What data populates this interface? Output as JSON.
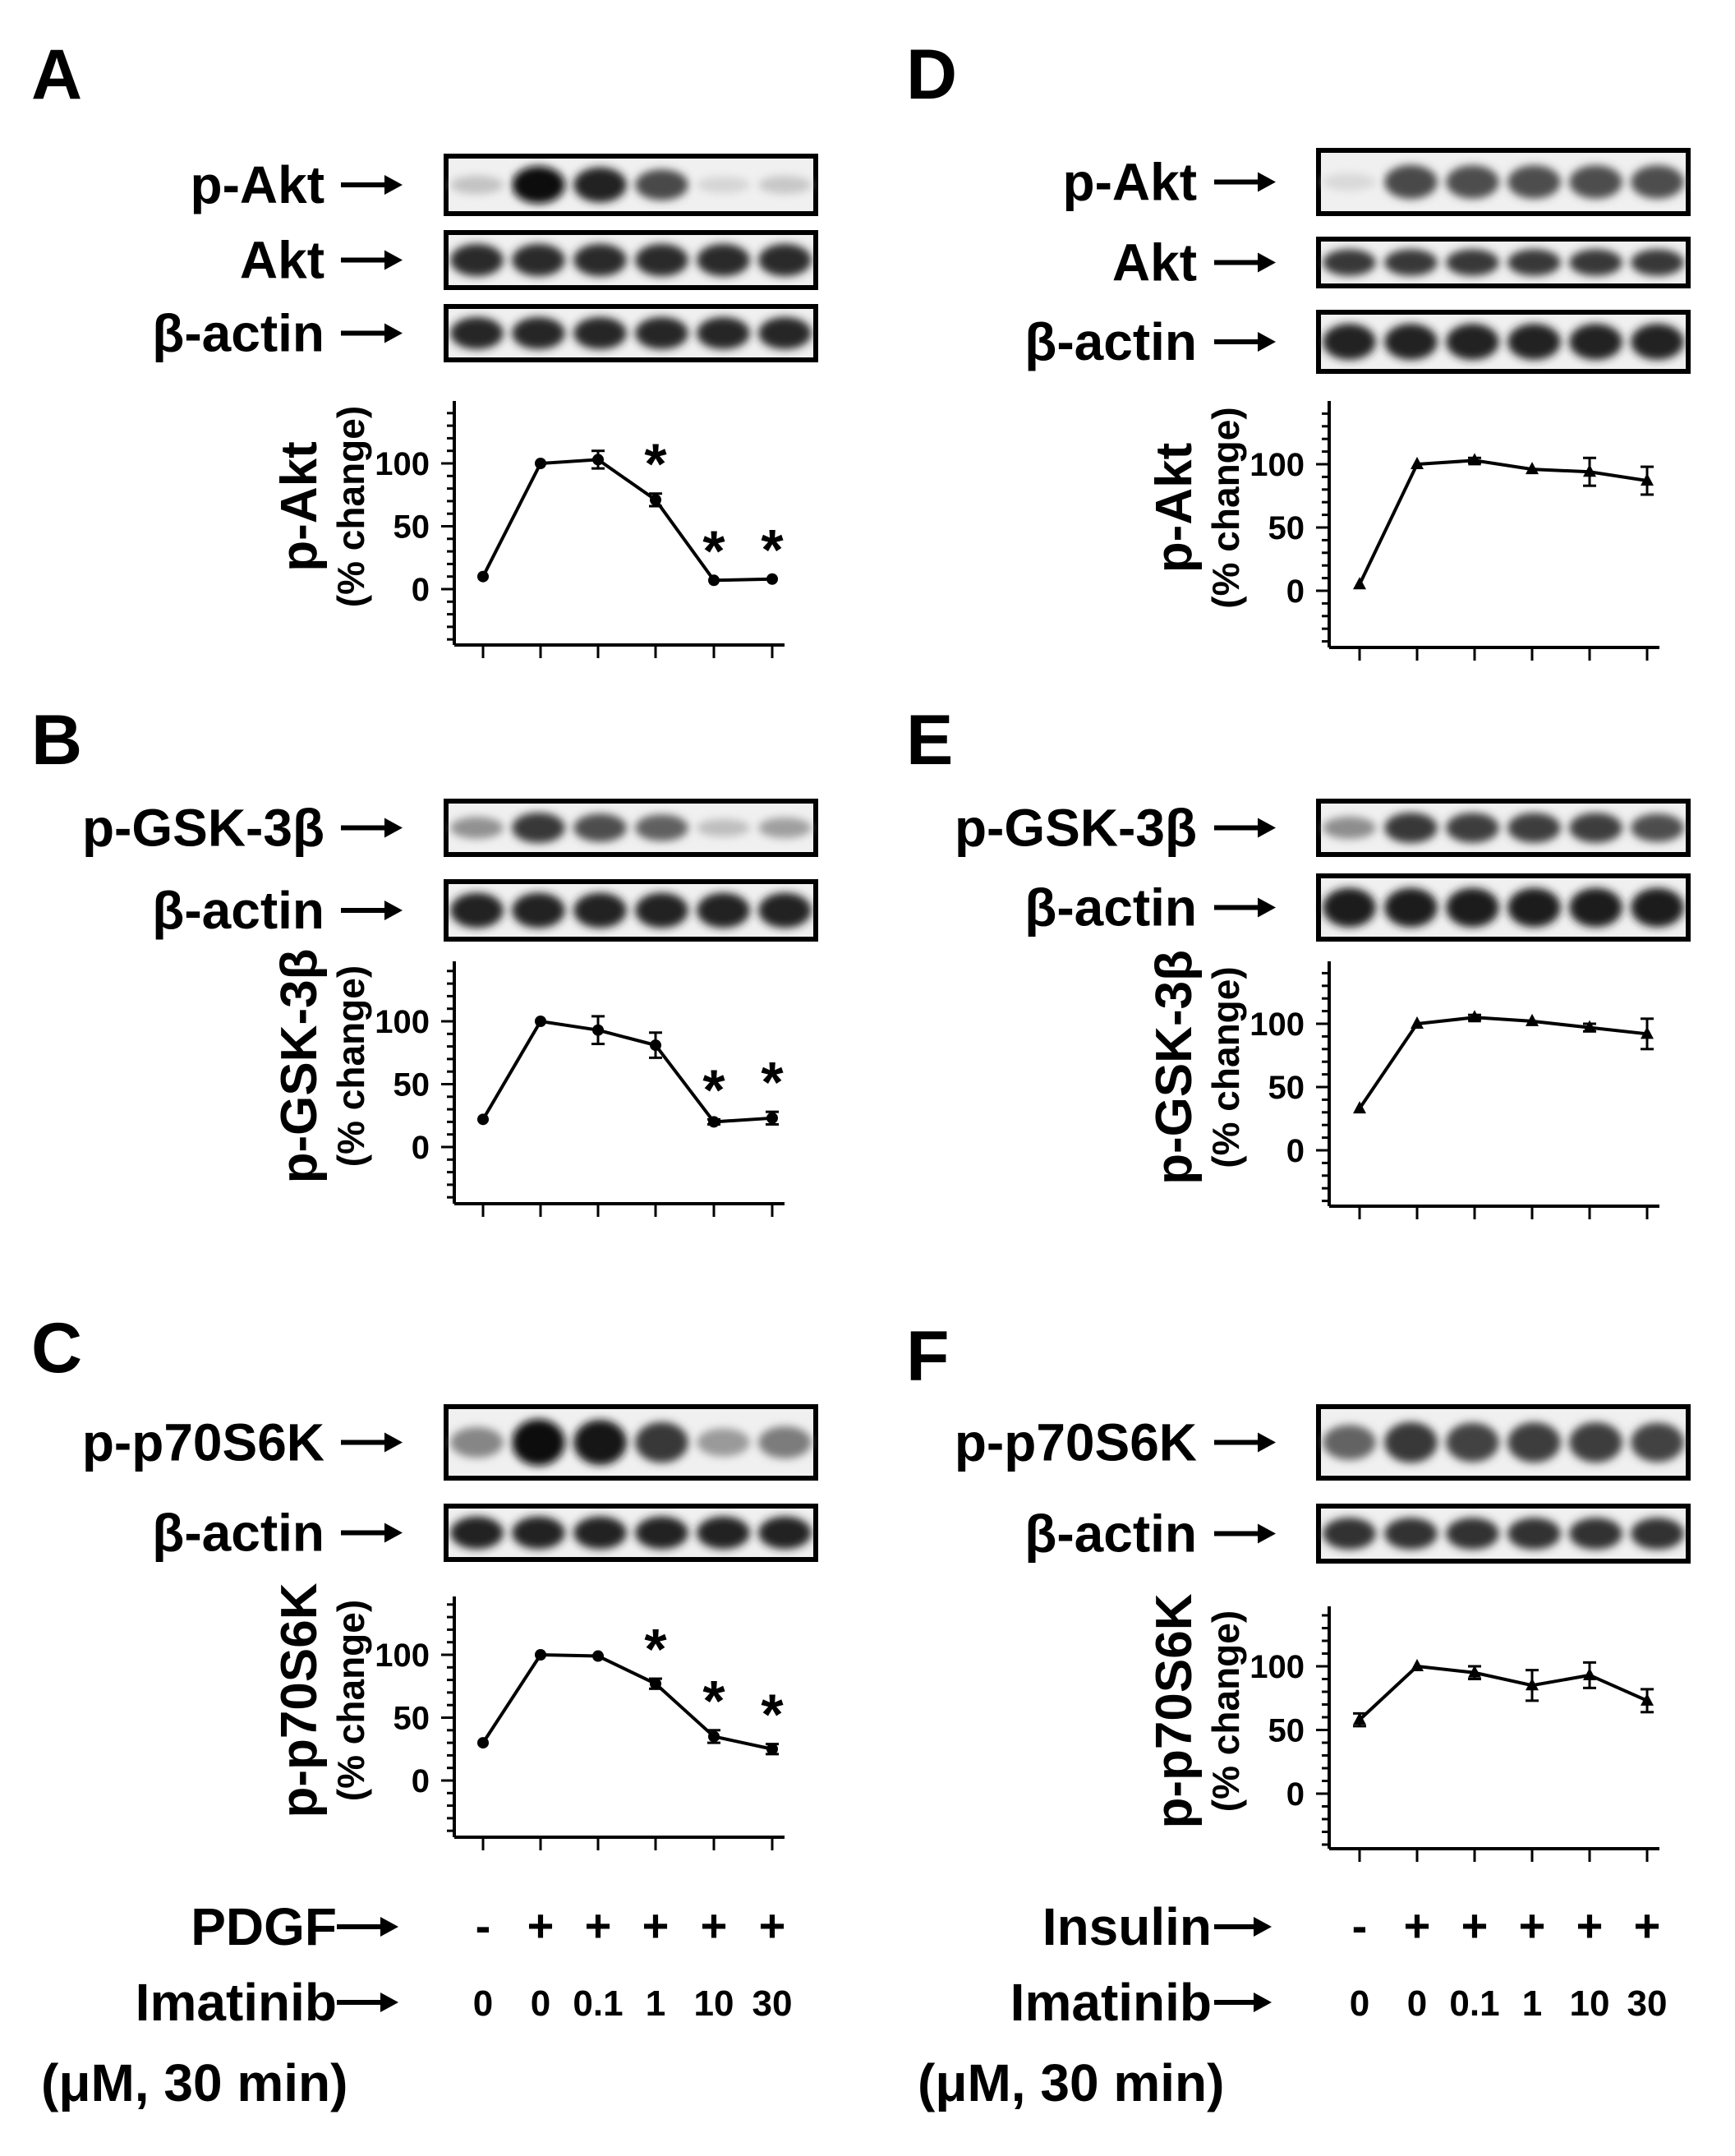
{
  "panels": [
    {
      "letter": "A",
      "blots": [
        {
          "name": "p-Akt",
          "intensity": [
            0.18,
            1.0,
            0.9,
            0.72,
            0.1,
            0.16
          ]
        },
        {
          "name": "Akt",
          "intensity": [
            0.85,
            0.85,
            0.85,
            0.85,
            0.85,
            0.85
          ]
        },
        {
          "name": "β-actin",
          "intensity": [
            0.88,
            0.88,
            0.88,
            0.88,
            0.88,
            0.88
          ]
        }
      ],
      "chart_data": {
        "type": "line",
        "ylabel": "p-Akt",
        "ylabel_sub": "(% change)",
        "ylim": [
          -40,
          140
        ],
        "yticks": [
          "0",
          "50",
          "100"
        ],
        "marker": "circle",
        "series": [
          {
            "values": [
              10,
              100,
              103,
              71,
              7,
              8
            ],
            "errors": [
              0,
              0,
              7,
              5,
              0,
              0
            ]
          }
        ],
        "significance": [
          "",
          "",
          "",
          "*",
          "*",
          "*"
        ]
      }
    },
    {
      "letter": "B",
      "blots": [
        {
          "name": "p-GSK-3β",
          "intensity": [
            0.4,
            0.8,
            0.7,
            0.62,
            0.2,
            0.34
          ]
        },
        {
          "name": "β-actin",
          "intensity": [
            0.9,
            0.9,
            0.9,
            0.9,
            0.9,
            0.9
          ]
        }
      ],
      "chart_data": {
        "type": "line",
        "ylabel": "p-GSK-3β",
        "ylabel_sub": "(% change)",
        "ylim": [
          -40,
          140
        ],
        "yticks": [
          "0",
          "50",
          "100"
        ],
        "marker": "circle",
        "series": [
          {
            "values": [
              22,
              100,
              93,
              81,
              20,
              23
            ],
            "errors": [
              0,
              0,
              11,
              10,
              2,
              5
            ]
          }
        ],
        "significance": [
          "",
          "",
          "",
          "",
          "*",
          "*"
        ]
      }
    },
    {
      "letter": "C",
      "blots": [
        {
          "name": "p-p70S6K",
          "intensity": [
            0.45,
            1.0,
            0.95,
            0.8,
            0.36,
            0.5
          ]
        },
        {
          "name": "β-actin",
          "intensity": [
            0.9,
            0.9,
            0.9,
            0.9,
            0.9,
            0.9
          ]
        }
      ],
      "chart_data": {
        "type": "line",
        "ylabel": "p-p70S6K",
        "ylabel_sub": "(% change)",
        "ylim": [
          -40,
          140
        ],
        "yticks": [
          "0",
          "50",
          "100"
        ],
        "marker": "circle",
        "series": [
          {
            "values": [
              30,
              100,
              99,
              77,
              35,
              25
            ],
            "errors": [
              0,
              0,
              0,
              4,
              5,
              4
            ]
          }
        ],
        "significance": [
          "",
          "",
          "",
          "*",
          "*",
          "*"
        ]
      }
    },
    {
      "letter": "D",
      "blots": [
        {
          "name": "p-Akt",
          "intensity": [
            0.08,
            0.72,
            0.7,
            0.7,
            0.7,
            0.7
          ]
        },
        {
          "name": "Akt",
          "intensity": [
            0.8,
            0.8,
            0.8,
            0.8,
            0.8,
            0.8
          ]
        },
        {
          "name": "β-actin",
          "intensity": [
            0.9,
            0.9,
            0.9,
            0.9,
            0.9,
            0.9
          ]
        }
      ],
      "chart_data": {
        "type": "line",
        "ylabel": "p-Akt",
        "ylabel_sub": "(% change)",
        "ylim": [
          -40,
          140
        ],
        "yticks": [
          "0",
          "50",
          "100"
        ],
        "marker": "triangle",
        "series": [
          {
            "values": [
              5,
              100,
              103,
              96,
              94,
              87
            ],
            "errors": [
              0,
              0,
              2,
              0,
              11,
              11
            ]
          }
        ],
        "significance": [
          "",
          "",
          "",
          "",
          "",
          ""
        ]
      }
    },
    {
      "letter": "E",
      "blots": [
        {
          "name": "p-GSK-3β",
          "intensity": [
            0.42,
            0.8,
            0.78,
            0.78,
            0.78,
            0.7
          ]
        },
        {
          "name": "β-actin",
          "intensity": [
            0.92,
            0.92,
            0.92,
            0.92,
            0.92,
            0.92
          ]
        }
      ],
      "chart_data": {
        "type": "line",
        "ylabel": "p-GSK-3β",
        "ylabel_sub": "(% change)",
        "ylim": [
          -40,
          140
        ],
        "yticks": [
          "0",
          "50",
          "100"
        ],
        "marker": "triangle",
        "series": [
          {
            "values": [
              33,
              100,
              105,
              102,
              97,
              92
            ],
            "errors": [
              0,
              0,
              2,
              0,
              3,
              12
            ]
          }
        ],
        "significance": [
          "",
          "",
          "",
          "",
          "",
          ""
        ]
      }
    },
    {
      "letter": "F",
      "blots": [
        {
          "name": "p-p70S6K",
          "intensity": [
            0.6,
            0.8,
            0.75,
            0.78,
            0.78,
            0.75
          ]
        },
        {
          "name": "β-actin",
          "intensity": [
            0.82,
            0.82,
            0.82,
            0.82,
            0.82,
            0.82
          ]
        }
      ],
      "chart_data": {
        "type": "line",
        "ylabel": "p-p70S6K",
        "ylabel_sub": "(% change)",
        "ylim": [
          -40,
          140
        ],
        "yticks": [
          "0",
          "50",
          "100"
        ],
        "marker": "triangle",
        "series": [
          {
            "values": [
              58,
              100,
              95,
              85,
              93,
              73
            ],
            "errors": [
              5,
              0,
              5,
              12,
              10,
              9
            ]
          }
        ],
        "significance": [
          "",
          "",
          "",
          "",
          "",
          ""
        ]
      }
    }
  ],
  "conditions": {
    "left": {
      "stimulus_label": "PDGF",
      "stimulus_marks": [
        "-",
        "+",
        "+",
        "+",
        "+",
        "+"
      ],
      "drug_label": "Imatinib",
      "doses": [
        "0",
        "0",
        "0.1",
        "1",
        "10",
        "30"
      ],
      "units": "(μM, 30 min)"
    },
    "right": {
      "stimulus_label": "Insulin",
      "stimulus_marks": [
        "-",
        "+",
        "+",
        "+",
        "+",
        "+"
      ],
      "drug_label": "Imatinib",
      "doses": [
        "0",
        "0",
        "0.1",
        "1",
        "10",
        "30"
      ],
      "units": "(μM, 30 min)"
    }
  }
}
